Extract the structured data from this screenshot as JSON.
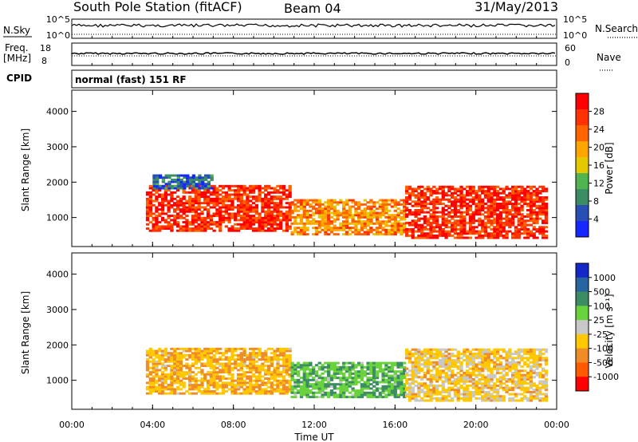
{
  "header": {
    "station": "South Pole Station (fitACF)",
    "beam": "Beam 04",
    "date": "31/May/2013"
  },
  "top_panels": {
    "nsky_label": "N.Sky",
    "nsearch_label": "N.Search",
    "nsky_ticks": [
      "10^5",
      "10^0"
    ],
    "nsearch_ticks": [
      "10^5",
      "10^0"
    ],
    "freq_label": "Freq.",
    "freq_unit": "[MHz]",
    "freq_ticks": [
      "18",
      "8"
    ],
    "nave_label": "Nave",
    "nave_ticks": [
      "60",
      "0"
    ],
    "cpid_label": "CPID",
    "cpid_text": "normal (fast) 151 RF"
  },
  "colors": {
    "power_scale": [
      "#1428ff",
      "#2850b4",
      "#3c8c64",
      "#50b450",
      "#e6c800",
      "#ffa500",
      "#ff6400",
      "#ff3200",
      "#ff0000"
    ],
    "velocity_scale": [
      "#ff0000",
      "#ff5a00",
      "#f08c28",
      "#ffc800",
      "#c8c8c8",
      "#6ad23c",
      "#3c8c64",
      "#2864a0",
      "#1428c8"
    ]
  },
  "chart_data": [
    {
      "type": "heatmap",
      "ylabel": "Slant Range [km]",
      "y_ticks": [
        "4000",
        "3000",
        "2000",
        "1000"
      ],
      "ylim": [
        180,
        4600
      ],
      "x_ticks": [
        "00:00",
        "04:00",
        "08:00",
        "12:00",
        "16:00",
        "20:00",
        "00:00"
      ],
      "xlim": [
        "00:00",
        "24:00"
      ],
      "colorbar": {
        "label": "Power [dB]",
        "ticks": [
          "28",
          "24",
          "20",
          "16",
          "12",
          "8",
          "4"
        ],
        "range": [
          0,
          30
        ]
      },
      "echo_regions": [
        {
          "start": "03:40",
          "end": "10:50",
          "range_km": [
            600,
            1900
          ],
          "power_db": 26
        },
        {
          "start": "10:50",
          "end": "16:30",
          "range_km": [
            500,
            1500
          ],
          "power_db": 20
        },
        {
          "start": "16:30",
          "end": "23:30",
          "range_km": [
            400,
            1900
          ],
          "power_db": 26
        },
        {
          "start": "04:00",
          "end": "07:00",
          "range_km": [
            1800,
            2200
          ],
          "power_db": 6
        }
      ]
    },
    {
      "type": "heatmap",
      "ylabel": "Slant Range [km]",
      "xlabel": "Time UT",
      "y_ticks": [
        "4000",
        "3000",
        "2000",
        "1000"
      ],
      "ylim": [
        180,
        4600
      ],
      "x_ticks": [
        "00:00",
        "04:00",
        "08:00",
        "12:00",
        "16:00",
        "20:00",
        "00:00"
      ],
      "xlim": [
        "00:00",
        "24:00"
      ],
      "colorbar": {
        "label": "Velocity [m s⁻¹]",
        "ticks": [
          "1000",
          "500",
          "100",
          "25",
          "-25",
          "-100",
          "-500",
          "-1000"
        ],
        "range": [
          -1000,
          1000
        ]
      },
      "echo_regions": [
        {
          "start": "03:40",
          "end": "10:50",
          "range_km": [
            600,
            1900
          ],
          "velocity_ms": -300
        },
        {
          "start": "10:50",
          "end": "16:30",
          "range_km": [
            500,
            1500
          ],
          "velocity_ms": 300
        },
        {
          "start": "16:30",
          "end": "23:30",
          "range_km": [
            400,
            1900
          ],
          "velocity_ms": -200
        }
      ]
    }
  ]
}
